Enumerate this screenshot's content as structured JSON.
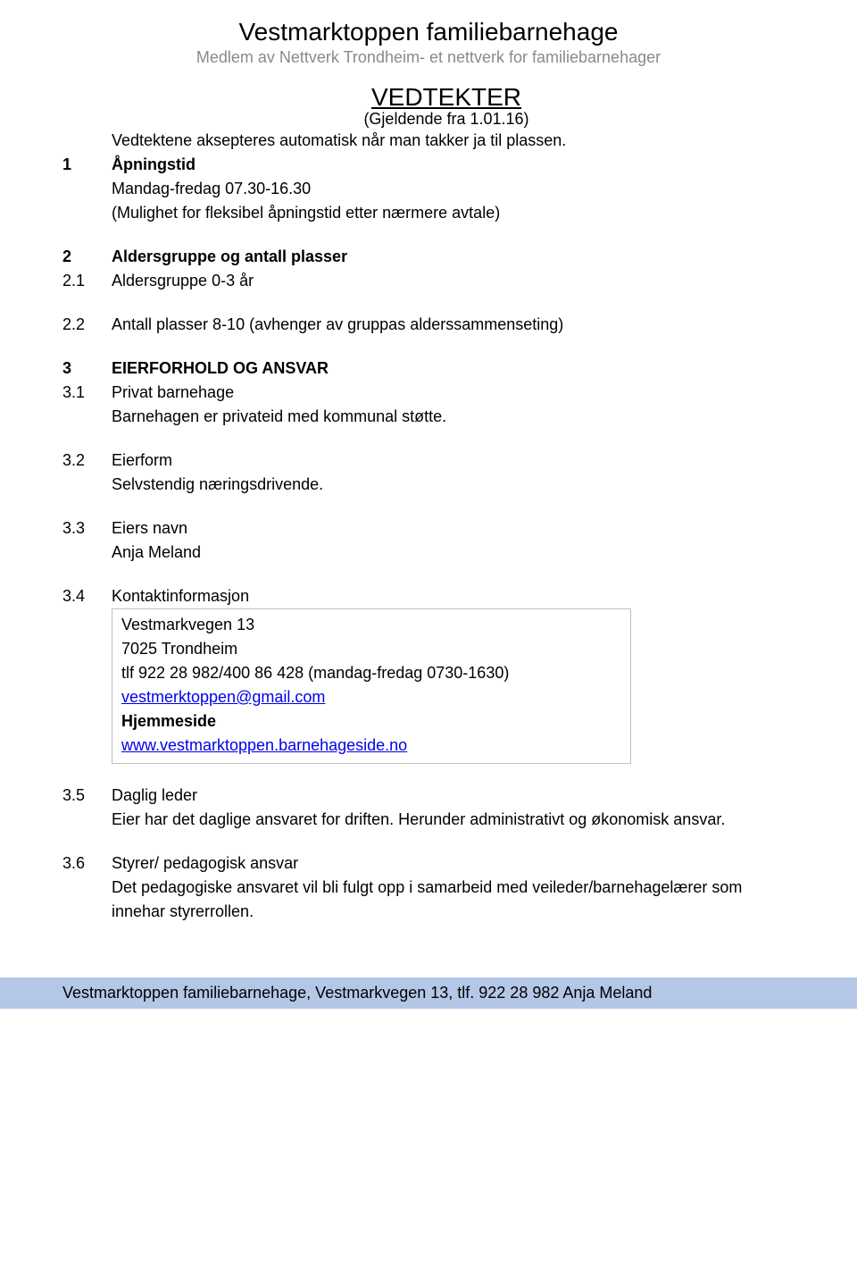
{
  "header": {
    "title": "Vestmarktoppen familiebarnehage",
    "subtitle": "Medlem av Nettverk Trondheim- et nettverk for familiebarnehager"
  },
  "main_heading": "VEDTEKTER",
  "gjeldende": "(Gjeldende fra 1.01.16)",
  "intro_line": "Vedtektene aksepteres automatisk når man takker ja til plassen.",
  "s1": {
    "num": "1",
    "title": "Åpningstid",
    "l1": "Mandag-fredag 07.30-16.30",
    "l2": "(Mulighet for fleksibel åpningstid etter nærmere avtale)"
  },
  "s2": {
    "num": "2",
    "title": "Aldersgruppe og antall plasser",
    "s21_num": "2.1",
    "s21": "Aldersgruppe 0-3 år",
    "s22_num": "2.2",
    "s22": "Antall plasser  8-10 (avhenger av gruppas alderssammenseting)"
  },
  "s3": {
    "num": "3",
    "title": "EIERFORHOLD OG ANSVAR",
    "s31_num": "3.1",
    "s31_title": "Privat barnehage",
    "s31_body": "Barnehagen er privateid med kommunal støtte.",
    "s32_num": "3.2",
    "s32_title": "Eierform",
    "s32_body": "Selvstendig næringsdrivende.",
    "s33_num": "3.3",
    "s33_title": "Eiers navn",
    "s33_body": "Anja Meland",
    "s34_num": "3.4",
    "s34_title": "Kontaktinformasjon",
    "contact": {
      "addr1": "Vestmarkvegen 13",
      "addr2": "7025 Trondheim",
      "phone": "tlf 922 28 982/400 86 428 (mandag-fredag 0730-1630)",
      "email": "vestmerktoppen@gmail.com",
      "homepage_label": "Hjemmeside",
      "www": "www.vestmarktoppen.barnehageside.no"
    },
    "s35_num": "3.5",
    "s35_title": "Daglig leder",
    "s35_body": "Eier har det daglige ansvaret for driften. Herunder administrativt og økonomisk ansvar.",
    "s36_num": "3.6",
    "s36_title": "Styrer/ pedagogisk ansvar",
    "s36_body": "Det pedagogiske ansvaret vil bli fulgt opp i samarbeid med veileder/barnehagelærer som innehar styrerrollen."
  },
  "footer": "Vestmarktoppen familiebarnehage, Vestmarkvegen 13, tlf. 922 28 982 Anja Meland"
}
